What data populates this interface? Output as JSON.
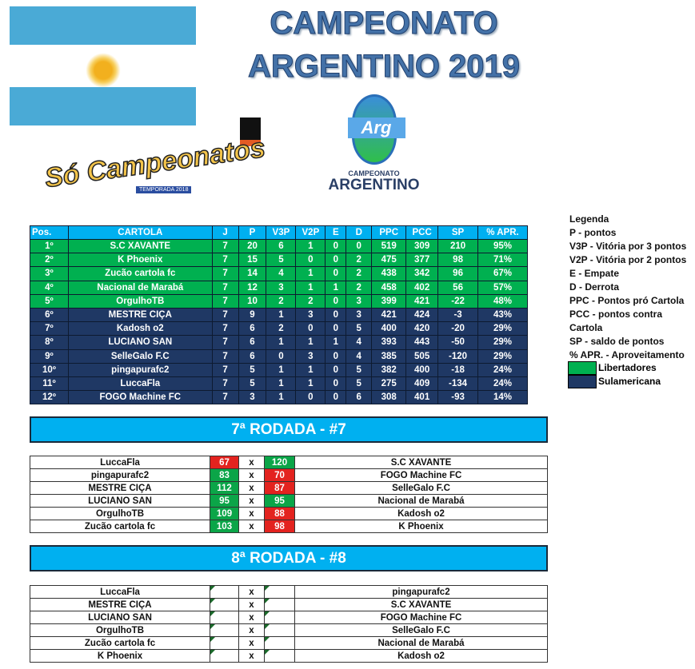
{
  "title": {
    "line1": "CAMPEONATO",
    "line2": "ARGENTINO 2019"
  },
  "logos": {
    "so_campeonatos": "Só Campeonatos",
    "so_badge": "TEMPORADA 2018",
    "arg_mark": "Arg",
    "arg_line1": "CAMPEONATO",
    "arg_line2": "ARGENTINO"
  },
  "colors": {
    "header": "#00b0f0",
    "libertadores": "#00b050",
    "sulamericana": "#1f3864",
    "win": "#0ba548",
    "lose": "#e3231f"
  },
  "standings": {
    "headers": [
      "Pos.",
      "CARTOLA",
      "J",
      "P",
      "V3P",
      "V2P",
      "E",
      "D",
      "PPC",
      "PCC",
      "SP",
      "% APR."
    ],
    "rows": [
      {
        "zone": "lib",
        "cells": [
          "1º",
          "S.C XAVANTE",
          "7",
          "20",
          "6",
          "1",
          "0",
          "0",
          "519",
          "309",
          "210",
          "95%"
        ]
      },
      {
        "zone": "lib",
        "cells": [
          "2º",
          "K Phoenix",
          "7",
          "15",
          "5",
          "0",
          "0",
          "2",
          "475",
          "377",
          "98",
          "71%"
        ]
      },
      {
        "zone": "lib",
        "cells": [
          "3º",
          "Zucão cartola fc",
          "7",
          "14",
          "4",
          "1",
          "0",
          "2",
          "438",
          "342",
          "96",
          "67%"
        ]
      },
      {
        "zone": "lib",
        "cells": [
          "4º",
          "Nacional de Marabá",
          "7",
          "12",
          "3",
          "1",
          "1",
          "2",
          "458",
          "402",
          "56",
          "57%"
        ]
      },
      {
        "zone": "lib",
        "cells": [
          "5º",
          "OrgulhoTB",
          "7",
          "10",
          "2",
          "2",
          "0",
          "3",
          "399",
          "421",
          "-22",
          "48%"
        ]
      },
      {
        "zone": "sul",
        "cells": [
          "6º",
          "MESTRE CIÇA",
          "7",
          "9",
          "1",
          "3",
          "0",
          "3",
          "421",
          "424",
          "-3",
          "43%"
        ]
      },
      {
        "zone": "sul",
        "cells": [
          "7º",
          "Kadosh o2",
          "7",
          "6",
          "2",
          "0",
          "0",
          "5",
          "400",
          "420",
          "-20",
          "29%"
        ]
      },
      {
        "zone": "sul",
        "cells": [
          "8º",
          "LUCIANO SAN",
          "7",
          "6",
          "1",
          "1",
          "1",
          "4",
          "393",
          "443",
          "-50",
          "29%"
        ]
      },
      {
        "zone": "sul",
        "cells": [
          "9º",
          "SelleGalo F.C",
          "7",
          "6",
          "0",
          "3",
          "0",
          "4",
          "385",
          "505",
          "-120",
          "29%"
        ]
      },
      {
        "zone": "sul",
        "cells": [
          "10º",
          "pingapurafc2",
          "7",
          "5",
          "1",
          "1",
          "0",
          "5",
          "382",
          "400",
          "-18",
          "24%"
        ]
      },
      {
        "zone": "sul",
        "cells": [
          "11º",
          "LuccaFla",
          "7",
          "5",
          "1",
          "1",
          "0",
          "5",
          "275",
          "409",
          "-134",
          "24%"
        ]
      },
      {
        "zone": "sul",
        "cells": [
          "12º",
          "FOGO Machine FC",
          "7",
          "3",
          "1",
          "0",
          "0",
          "6",
          "308",
          "401",
          "-93",
          "14%"
        ]
      }
    ]
  },
  "legend": {
    "items": [
      "Legenda",
      "P - pontos",
      "V3P - Vitória por 3 pontos",
      "V2P - Vitória por 2 pontos",
      "E - Empate",
      "D - Derrota",
      "PPC - Pontos pró Cartola",
      "PCC - pontos contra Cartola",
      "SP - saldo de pontos",
      "% APR. - Aproveitamento"
    ],
    "zones": [
      "Libertadores",
      "Sulamericana"
    ]
  },
  "rounds": [
    {
      "title": "7ª RODADA - #7",
      "matches": [
        {
          "home": "LuccaFla",
          "hs": "67",
          "hr": "lose",
          "away": "S.C XAVANTE",
          "as": "120",
          "ar": "win"
        },
        {
          "home": "pingapurafc2",
          "hs": "83",
          "hr": "win",
          "away": "FOGO Machine FC",
          "as": "70",
          "ar": "lose"
        },
        {
          "home": "MESTRE CIÇA",
          "hs": "112",
          "hr": "win",
          "away": "SelleGalo F.C",
          "as": "87",
          "ar": "lose"
        },
        {
          "home": "LUCIANO SAN",
          "hs": "95",
          "hr": "win",
          "away": "Nacional de Marabá",
          "as": "95",
          "ar": "win"
        },
        {
          "home": "OrgulhoTB",
          "hs": "109",
          "hr": "win",
          "away": "Kadosh o2",
          "as": "88",
          "ar": "lose"
        },
        {
          "home": "Zucão cartola fc",
          "hs": "103",
          "hr": "win",
          "away": "K Phoenix",
          "as": "98",
          "ar": "lose"
        }
      ]
    },
    {
      "title": "8ª RODADA - #8",
      "matches": [
        {
          "home": "LuccaFla",
          "hs": "",
          "hr": "blank",
          "away": "pingapurafc2",
          "as": "",
          "ar": "blank"
        },
        {
          "home": "MESTRE CIÇA",
          "hs": "",
          "hr": "blank",
          "away": "S.C XAVANTE",
          "as": "",
          "ar": "blank"
        },
        {
          "home": "LUCIANO SAN",
          "hs": "",
          "hr": "blank",
          "away": "FOGO Machine FC",
          "as": "",
          "ar": "blank"
        },
        {
          "home": "OrgulhoTB",
          "hs": "",
          "hr": "blank",
          "away": "SelleGalo F.C",
          "as": "",
          "ar": "blank"
        },
        {
          "home": "Zucão cartola fc",
          "hs": "",
          "hr": "blank",
          "away": "Nacional de Marabá",
          "as": "",
          "ar": "blank"
        },
        {
          "home": "K Phoenix",
          "hs": "",
          "hr": "blank",
          "away": "Kadosh o2",
          "as": "",
          "ar": "blank"
        }
      ]
    }
  ],
  "vs": "x"
}
